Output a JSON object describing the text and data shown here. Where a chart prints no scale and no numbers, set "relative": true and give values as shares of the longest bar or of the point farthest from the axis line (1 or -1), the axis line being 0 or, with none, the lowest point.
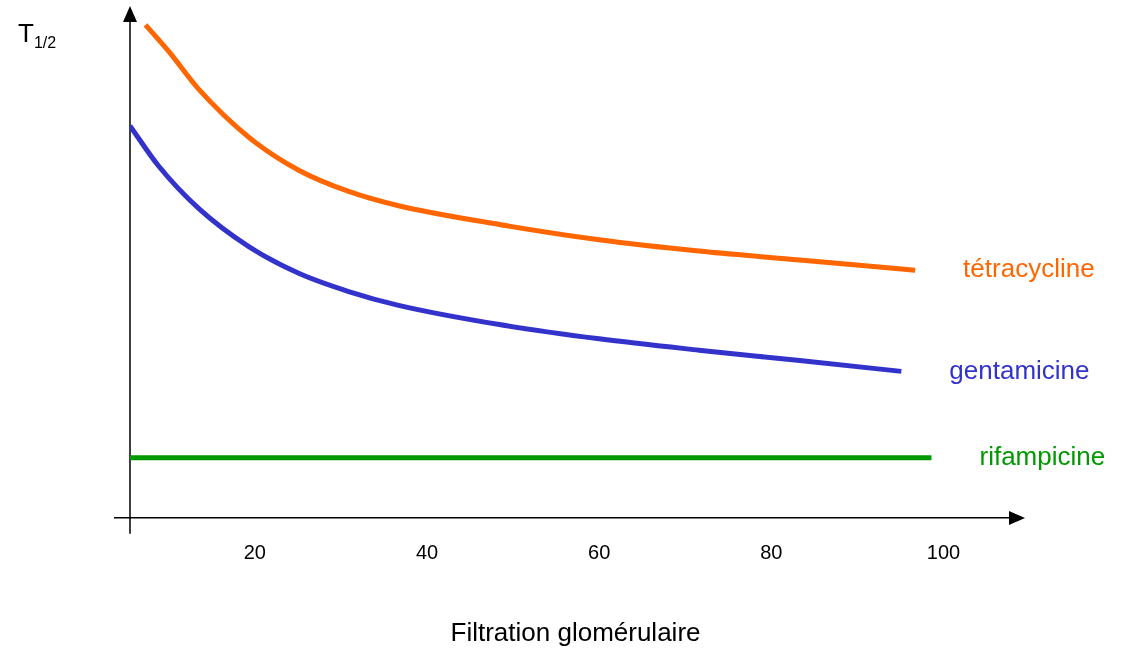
{
  "chart_data": {
    "type": "line",
    "relative": true,
    "ylabel": "T$_{1/2}$",
    "xlabel": "Filtration glomérulaire",
    "xlim": [
      5.5,
      109
    ],
    "xticks": [
      20,
      40,
      60,
      80,
      100
    ],
    "grid": false,
    "legend": false,
    "marker": "none",
    "line_style": "solid",
    "series": [
      {
        "name": "tétracycline",
        "color": "#ff6600",
        "x": [
          7.3,
          10,
          13.5,
          19.3,
          25.1,
          30.9,
          36.7,
          48.4,
          60,
          71.6,
          83.3,
          96.7
        ],
        "values": [
          1,
          0.946,
          0.869,
          0.772,
          0.705,
          0.662,
          0.633,
          0.595,
          0.564,
          0.541,
          0.523,
          0.502
        ]
      },
      {
        "name": "gentamicine",
        "color": "#3333cc",
        "x": [
          5.5,
          8.8,
          13.5,
          19.3,
          25.1,
          30.9,
          36.7,
          48.4,
          60,
          71.6,
          83.3,
          95.1
        ],
        "values": [
          0.795,
          0.714,
          0.627,
          0.55,
          0.496,
          0.459,
          0.431,
          0.392,
          0.363,
          0.34,
          0.319,
          0.297
        ]
      },
      {
        "name": "rifampicine",
        "color": "#009900",
        "x": [
          5.5,
          98.6
        ],
        "values": [
          0.122,
          0.122
        ]
      }
    ]
  }
}
